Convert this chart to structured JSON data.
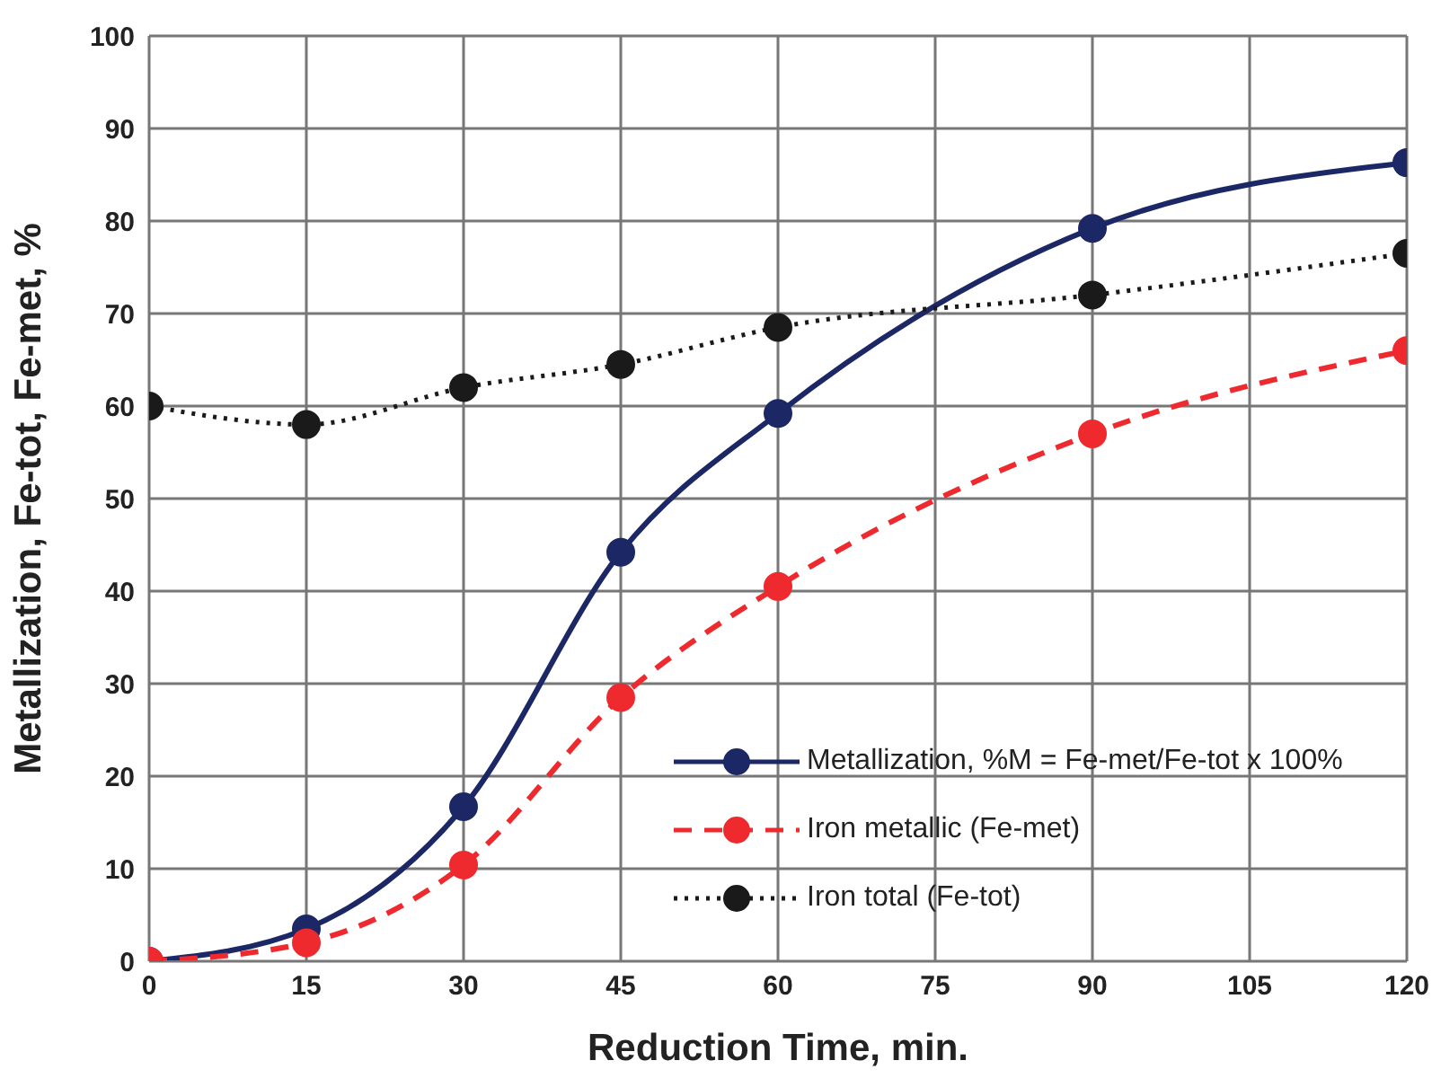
{
  "chart_data": {
    "type": "line",
    "xlabel": "Reduction Time, min.",
    "ylabel": "Metallization, Fe-tot, Fe-met, %",
    "x": [
      0,
      15,
      30,
      45,
      60,
      90,
      120
    ],
    "series": [
      {
        "name": "Metallization, %M = Fe-met/Fe-tot x 100%",
        "color": "#1c2766",
        "line_style": "solid",
        "values": [
          0,
          3.5,
          16.7,
          44.2,
          59.2,
          79.2,
          86.3
        ]
      },
      {
        "name": "Iron metallic (Fe-met)",
        "color": "#ee2a2e",
        "line_style": "dashed",
        "values": [
          0,
          2,
          10.4,
          28.5,
          40.5,
          57,
          66
        ]
      },
      {
        "name": "Iron total (Fe-tot)",
        "color": "#1a1a1a",
        "line_style": "dotted",
        "values": [
          60,
          58,
          62,
          64.5,
          68.5,
          72,
          76.5
        ]
      }
    ],
    "xlim": [
      0,
      120
    ],
    "xticks": [
      0,
      15,
      30,
      45,
      60,
      75,
      90,
      105,
      120
    ],
    "ylim": [
      0,
      100
    ],
    "yticks": [
      0,
      10,
      20,
      30,
      40,
      50,
      60,
      70,
      80,
      90,
      100
    ],
    "grid": true,
    "legend": "bottom right",
    "marker": "circle"
  }
}
